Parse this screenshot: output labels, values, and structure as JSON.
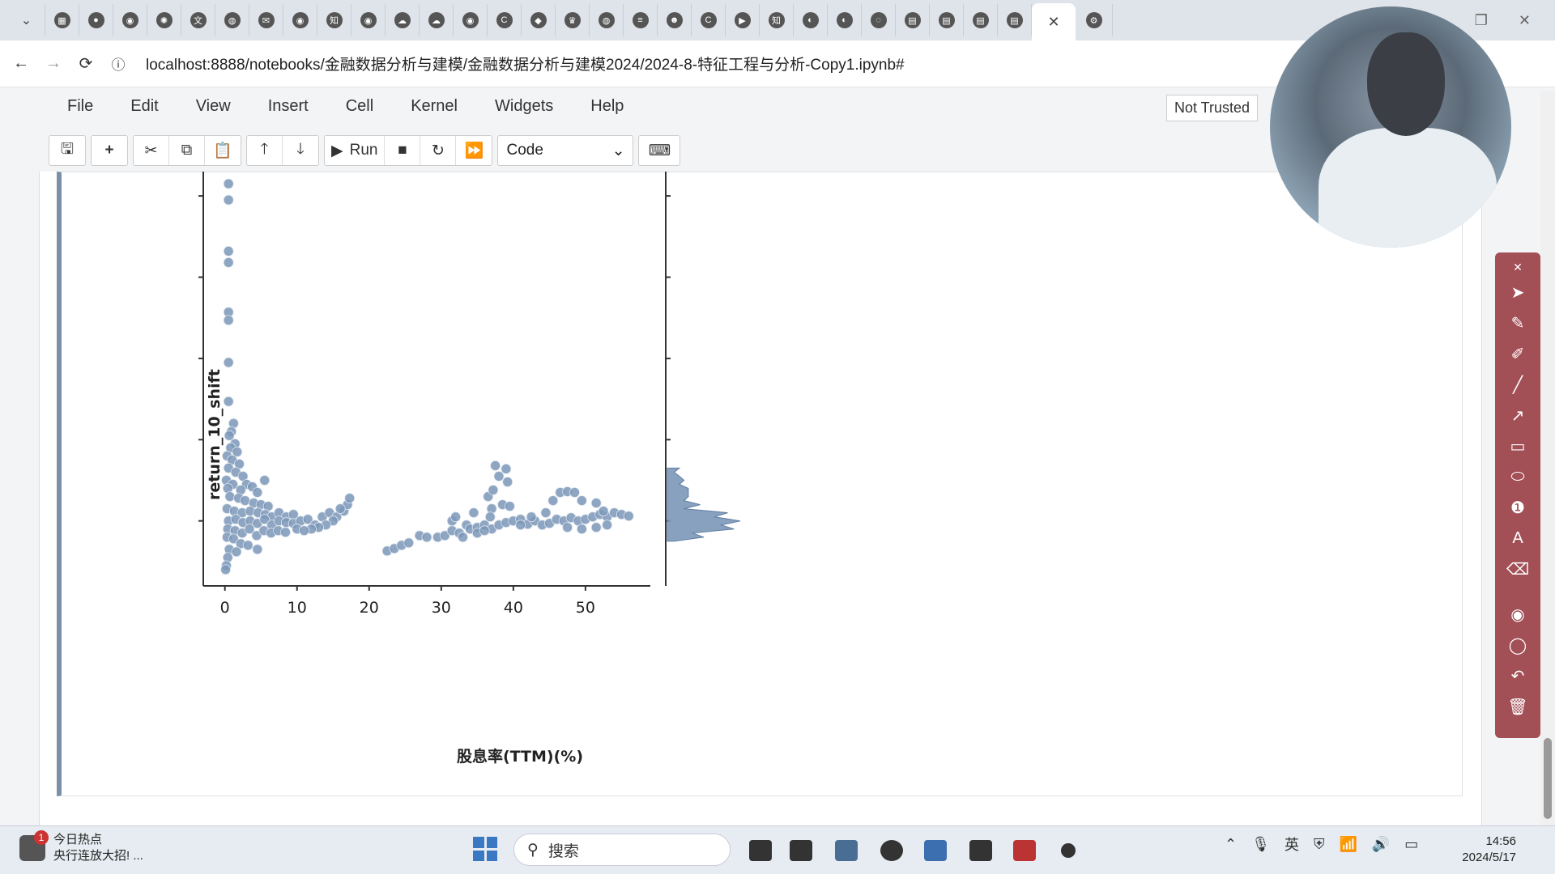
{
  "browser": {
    "tab_icons": [
      "calendar-icon",
      "record-icon",
      "github-icon",
      "chatgpt-icon",
      "translate-icon",
      "globe-icon",
      "mail-icon",
      "github-icon",
      "zhihu-icon",
      "github-icon",
      "cloud-icon",
      "cloud-icon",
      "github-icon",
      "c-icon",
      "chat-icon",
      "crown-icon",
      "globe-icon",
      "stack-icon",
      "bot-icon",
      "c-icon",
      "video-icon",
      "zhihu-icon",
      "disk-icon",
      "disk-icon",
      "loading-icon",
      "book-icon",
      "book-icon",
      "book-icon",
      "book-icon",
      "jupyter-icon",
      "gear-icon"
    ],
    "url": "localhost:8888/notebooks/金融数据分析与建模/金融数据分析与建模2024/2024-8-特征工程与分析-Copy1.ipynb#",
    "close_tab_glyph": "✕"
  },
  "jupyter": {
    "menu": [
      "File",
      "Edit",
      "View",
      "Insert",
      "Cell",
      "Kernel",
      "Widgets",
      "Help"
    ],
    "trusted": "Not Trusted",
    "toolbar": {
      "run_label": "Run",
      "cell_type": "Code"
    }
  },
  "chart_data": {
    "type": "scatter",
    "xlabel": "股息率(TTM)(%)",
    "ylabel": "return_10_shift",
    "xlim": [
      -3,
      59
    ],
    "ylim": [
      -0.8,
      4.3
    ],
    "x_ticks": [
      0,
      10,
      20,
      30,
      40,
      50
    ],
    "y_ticks": [
      0,
      1,
      2,
      3,
      4
    ],
    "color": "#7b97b8",
    "points": [
      [
        0.5,
        4.15
      ],
      [
        0.5,
        3.95
      ],
      [
        0.5,
        3.32
      ],
      [
        0.5,
        3.18
      ],
      [
        0.5,
        2.57
      ],
      [
        0.5,
        2.47
      ],
      [
        0.5,
        1.95
      ],
      [
        0.5,
        1.47
      ],
      [
        1.2,
        1.2
      ],
      [
        0.9,
        1.1
      ],
      [
        0.6,
        1.05
      ],
      [
        1.4,
        0.95
      ],
      [
        0.8,
        0.9
      ],
      [
        1.7,
        0.85
      ],
      [
        0.3,
        0.8
      ],
      [
        1.0,
        0.75
      ],
      [
        2.0,
        0.7
      ],
      [
        0.5,
        0.65
      ],
      [
        1.5,
        0.6
      ],
      [
        2.5,
        0.55
      ],
      [
        0.2,
        0.5
      ],
      [
        1.1,
        0.45
      ],
      [
        3.0,
        0.45
      ],
      [
        5.5,
        0.5
      ],
      [
        0.4,
        0.4
      ],
      [
        2.2,
        0.38
      ],
      [
        3.8,
        0.42
      ],
      [
        4.5,
        0.35
      ],
      [
        0.7,
        0.3
      ],
      [
        1.9,
        0.28
      ],
      [
        2.8,
        0.25
      ],
      [
        4.0,
        0.22
      ],
      [
        5.0,
        0.2
      ],
      [
        6.0,
        0.18
      ],
      [
        0.3,
        0.15
      ],
      [
        1.3,
        0.12
      ],
      [
        2.4,
        0.1
      ],
      [
        3.5,
        0.12
      ],
      [
        4.6,
        0.1
      ],
      [
        5.6,
        0.08
      ],
      [
        6.5,
        0.05
      ],
      [
        7.5,
        0.1
      ],
      [
        8.5,
        0.05
      ],
      [
        9.5,
        0.08
      ],
      [
        0.5,
        0.0
      ],
      [
        1.5,
        0.02
      ],
      [
        2.5,
        -0.02
      ],
      [
        3.5,
        0.0
      ],
      [
        4.5,
        -0.03
      ],
      [
        5.5,
        0.02
      ],
      [
        6.5,
        -0.05
      ],
      [
        7.5,
        0.0
      ],
      [
        8.5,
        -0.02
      ],
      [
        9.5,
        -0.03
      ],
      [
        10.5,
        0.0
      ],
      [
        11.5,
        0.02
      ],
      [
        12.5,
        -0.05
      ],
      [
        13.5,
        0.05
      ],
      [
        14.5,
        0.1
      ],
      [
        15.5,
        0.05
      ],
      [
        16.5,
        0.12
      ],
      [
        17.0,
        0.2
      ],
      [
        17.3,
        0.28
      ],
      [
        16.0,
        0.15
      ],
      [
        15.0,
        0.0
      ],
      [
        14.0,
        -0.05
      ],
      [
        13.0,
        -0.08
      ],
      [
        12.0,
        -0.1
      ],
      [
        0.4,
        -0.1
      ],
      [
        1.4,
        -0.12
      ],
      [
        2.4,
        -0.15
      ],
      [
        3.4,
        -0.1
      ],
      [
        4.4,
        -0.18
      ],
      [
        5.4,
        -0.12
      ],
      [
        6.4,
        -0.15
      ],
      [
        7.4,
        -0.12
      ],
      [
        8.4,
        -0.14
      ],
      [
        10.0,
        -0.1
      ],
      [
        11.0,
        -0.12
      ],
      [
        0.3,
        -0.2
      ],
      [
        1.2,
        -0.22
      ],
      [
        2.2,
        -0.28
      ],
      [
        3.2,
        -0.3
      ],
      [
        4.5,
        -0.35
      ],
      [
        0.6,
        -0.35
      ],
      [
        1.6,
        -0.38
      ],
      [
        0.4,
        -0.45
      ],
      [
        0.2,
        -0.55
      ],
      [
        0.1,
        -0.6
      ],
      [
        22.5,
        -0.37
      ],
      [
        23.5,
        -0.34
      ],
      [
        24.5,
        -0.3
      ],
      [
        25.5,
        -0.27
      ],
      [
        27.0,
        -0.18
      ],
      [
        28.0,
        -0.2
      ],
      [
        29.5,
        -0.2
      ],
      [
        30.5,
        -0.18
      ],
      [
        31.5,
        -0.12
      ],
      [
        32.5,
        -0.15
      ],
      [
        31.5,
        0.0
      ],
      [
        32.0,
        0.05
      ],
      [
        33.5,
        -0.05
      ],
      [
        34.0,
        -0.1
      ],
      [
        35.0,
        -0.08
      ],
      [
        36.0,
        -0.05
      ],
      [
        37.0,
        -0.1
      ],
      [
        38.0,
        -0.05
      ],
      [
        39.0,
        -0.02
      ],
      [
        40.0,
        0.0
      ],
      [
        41.0,
        0.02
      ],
      [
        42.0,
        -0.04
      ],
      [
        43.0,
        0.0
      ],
      [
        44.0,
        -0.05
      ],
      [
        45.0,
        -0.03
      ],
      [
        46.0,
        0.02
      ],
      [
        47.0,
        0.0
      ],
      [
        48.0,
        0.04
      ],
      [
        49.0,
        0.0
      ],
      [
        50.0,
        0.02
      ],
      [
        51.0,
        0.05
      ],
      [
        52.0,
        0.08
      ],
      [
        53.0,
        0.05
      ],
      [
        54.0,
        0.1
      ],
      [
        55.0,
        0.08
      ],
      [
        56.0,
        0.06
      ],
      [
        53.0,
        -0.05
      ],
      [
        51.5,
        -0.08
      ],
      [
        49.5,
        -0.1
      ],
      [
        47.5,
        -0.08
      ],
      [
        36.5,
        0.3
      ],
      [
        37.2,
        0.38
      ],
      [
        37.0,
        0.15
      ],
      [
        38.5,
        0.2
      ],
      [
        39.5,
        0.18
      ],
      [
        38.0,
        0.55
      ],
      [
        37.5,
        0.68
      ],
      [
        39.0,
        0.64
      ],
      [
        39.2,
        0.48
      ],
      [
        36.8,
        0.05
      ],
      [
        45.5,
        0.25
      ],
      [
        46.5,
        0.35
      ],
      [
        47.5,
        0.36
      ],
      [
        48.5,
        0.35
      ],
      [
        49.5,
        0.25
      ],
      [
        51.5,
        0.22
      ],
      [
        52.5,
        0.12
      ],
      [
        44.5,
        0.1
      ],
      [
        42.5,
        0.05
      ],
      [
        41.0,
        -0.05
      ],
      [
        35.0,
        -0.15
      ],
      [
        36.0,
        -0.12
      ],
      [
        34.5,
        0.1
      ],
      [
        33.0,
        -0.2
      ]
    ]
  },
  "taskbar": {
    "news_badge": "1",
    "news_title": "今日热点",
    "news_sub": "央行连放大招! ...",
    "search_label": "搜索",
    "ime_label": "英",
    "time": "14:56",
    "date": "2024/5/17"
  }
}
